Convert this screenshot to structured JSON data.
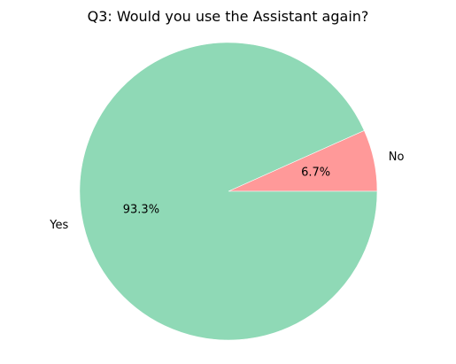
{
  "chart_data": {
    "type": "pie",
    "title": "Q3: Would you use the Assistant again?",
    "slices": [
      {
        "label": "No",
        "value": 6.7,
        "pct_label": "6.7%",
        "color": "#ff9999"
      },
      {
        "label": "Yes",
        "value": 93.3,
        "pct_label": "93.3%",
        "color": "#8fd9b6"
      }
    ],
    "start_angle_deg": 0,
    "direction": "counterclockwise",
    "legend": "none"
  }
}
